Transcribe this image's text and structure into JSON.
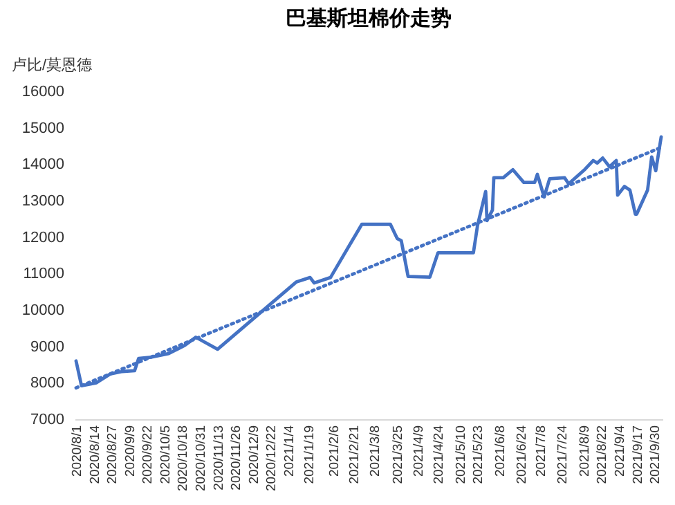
{
  "chart_data": {
    "type": "line",
    "title": "巴基斯坦棉价走势",
    "ylabel": "卢比/莫恩德",
    "ylim": [
      7000,
      16000
    ],
    "yticks": [
      7000,
      8000,
      9000,
      10000,
      11000,
      12000,
      13000,
      14000,
      15000,
      16000
    ],
    "xlim": [
      "2020-07-31",
      "2021-10-06"
    ],
    "xticks": [
      {
        "value": "2020-08-01",
        "label": "2020/8/1"
      },
      {
        "value": "2020-08-14",
        "label": "2020/8/14"
      },
      {
        "value": "2020-08-27",
        "label": "2020/8/27"
      },
      {
        "value": "2020-09-09",
        "label": "2020/9/9"
      },
      {
        "value": "2020-09-22",
        "label": "2020/9/22"
      },
      {
        "value": "2020-10-05",
        "label": "2020/10/5"
      },
      {
        "value": "2020-10-18",
        "label": "2020/10/18"
      },
      {
        "value": "2020-10-31",
        "label": "2020/10/31"
      },
      {
        "value": "2020-11-13",
        "label": "2020/11/13"
      },
      {
        "value": "2020-11-26",
        "label": "2020/11/26"
      },
      {
        "value": "2020-12-09",
        "label": "2020/12/9"
      },
      {
        "value": "2020-12-22",
        "label": "2020/12/22"
      },
      {
        "value": "2021-01-04",
        "label": "2021/1/4"
      },
      {
        "value": "2021-01-19",
        "label": "2021/1/19"
      },
      {
        "value": "2021-02-06",
        "label": "2021/2/6"
      },
      {
        "value": "2021-02-21",
        "label": "2021/2/21"
      },
      {
        "value": "2021-03-08",
        "label": "2021/3/8"
      },
      {
        "value": "2021-03-25",
        "label": "2021/3/25"
      },
      {
        "value": "2021-04-09",
        "label": "2021/4/9"
      },
      {
        "value": "2021-04-24",
        "label": "2021/4/24"
      },
      {
        "value": "2021-05-10",
        "label": "2021/5/10"
      },
      {
        "value": "2021-05-23",
        "label": "2021/5/23"
      },
      {
        "value": "2021-06-08",
        "label": "2021/6/8"
      },
      {
        "value": "2021-06-24",
        "label": "2021/6/24"
      },
      {
        "value": "2021-07-08",
        "label": "2021/7/8"
      },
      {
        "value": "2021-07-24",
        "label": "2021/7/24"
      },
      {
        "value": "2021-08-09",
        "label": "2021/8/9"
      },
      {
        "value": "2021-08-22",
        "label": "2021/8/22"
      },
      {
        "value": "2021-09-04",
        "label": "2021/9/4"
      },
      {
        "value": "2021-09-17",
        "label": "2021/9/17"
      },
      {
        "value": "2021-09-30",
        "label": "2021/9/30"
      }
    ],
    "grid": false,
    "marker": "none",
    "series": [
      {
        "color": "#4472c4",
        "line_style": "solid",
        "x": [
          "2020-08-01",
          "2020-08-05",
          "2020-08-16",
          "2020-08-26",
          "2020-09-04",
          "2020-09-13",
          "2020-09-16",
          "2020-09-25",
          "2020-10-08",
          "2020-10-20",
          "2020-10-28",
          "2020-11-13",
          "2021-01-10",
          "2021-01-20",
          "2021-01-23",
          "2021-02-04",
          "2021-02-27",
          "2021-03-20",
          "2021-03-25",
          "2021-03-28",
          "2021-04-02",
          "2021-04-18",
          "2021-04-24",
          "2021-05-20",
          "2021-05-23",
          "2021-05-29",
          "2021-05-30",
          "2021-06-03",
          "2021-06-04",
          "2021-06-11",
          "2021-06-18",
          "2021-06-26",
          "2021-07-04",
          "2021-07-06",
          "2021-07-11",
          "2021-07-15",
          "2021-07-26",
          "2021-07-29",
          "2021-08-10",
          "2021-08-16",
          "2021-08-19",
          "2021-08-23",
          "2021-08-28",
          "2021-09-02",
          "2021-09-03",
          "2021-09-08",
          "2021-09-12",
          "2021-09-16",
          "2021-09-17",
          "2021-09-25",
          "2021-09-28",
          "2021-10-01",
          "2021-10-05"
        ],
        "values": [
          8600,
          7920,
          8000,
          8240,
          8310,
          8330,
          8670,
          8700,
          8800,
          9030,
          9250,
          8920,
          10770,
          10890,
          10740,
          10890,
          12350,
          12350,
          11960,
          11900,
          10920,
          10900,
          11570,
          11570,
          12310,
          13250,
          12450,
          12740,
          13630,
          13630,
          13850,
          13500,
          13500,
          13720,
          13100,
          13600,
          13630,
          13460,
          13860,
          14100,
          14030,
          14170,
          13930,
          14100,
          13150,
          13390,
          13290,
          12630,
          12630,
          13290,
          14200,
          13820,
          14750
        ]
      },
      {
        "color": "#4472c4",
        "line_style": "dotted",
        "x": [
          "2020-08-01",
          "2021-10-05"
        ],
        "values": [
          7860,
          14460
        ]
      }
    ]
  }
}
